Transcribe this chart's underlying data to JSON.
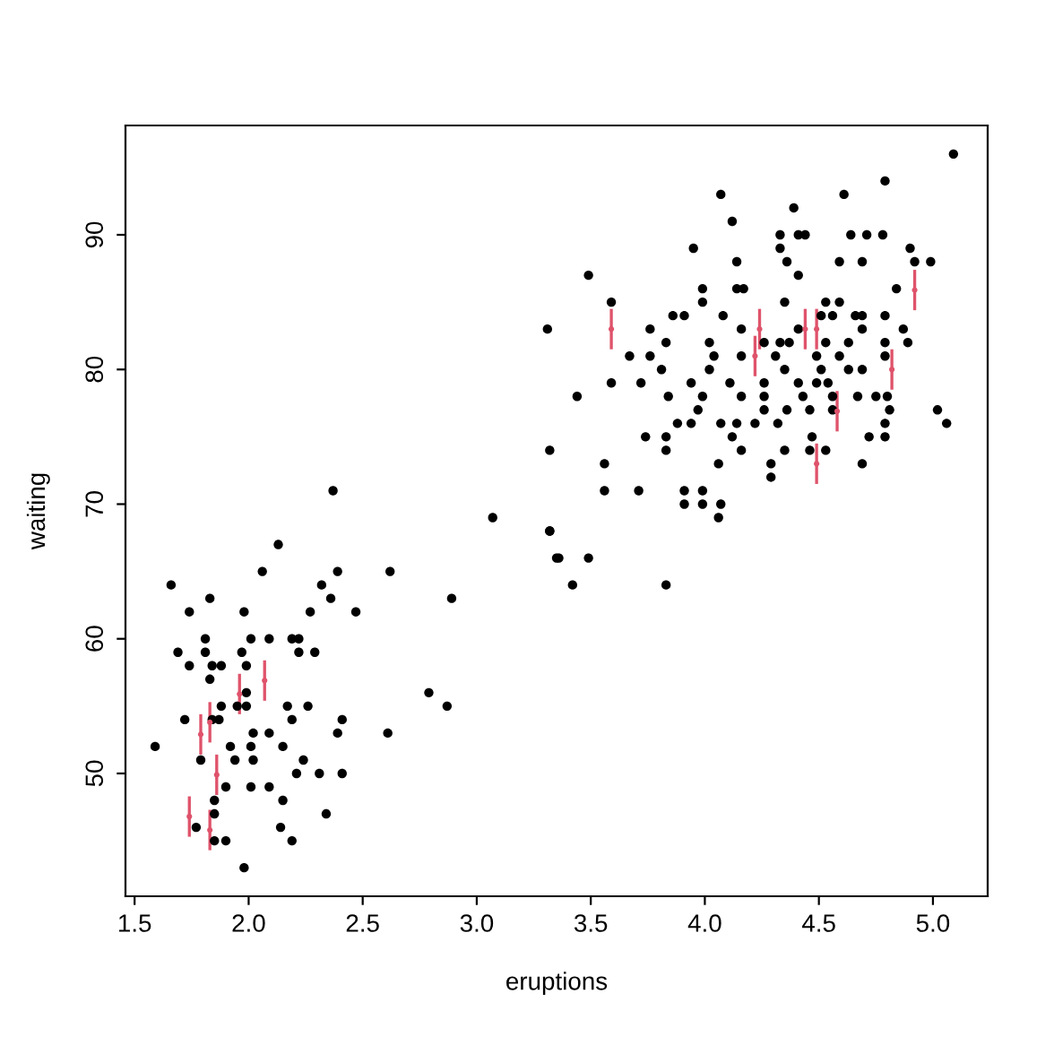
{
  "chart_data": {
    "type": "scatter",
    "xlabel": "eruptions",
    "ylabel": "waiting",
    "xlim": [
      1.46,
      5.24
    ],
    "ylim": [
      40.88,
      98.12
    ],
    "xticks": [
      {
        "value": 1.5,
        "label": "1.5"
      },
      {
        "value": 2.0,
        "label": "2.0"
      },
      {
        "value": 2.5,
        "label": "2.5"
      },
      {
        "value": 3.0,
        "label": "3.0"
      },
      {
        "value": 3.5,
        "label": "3.5"
      },
      {
        "value": 4.0,
        "label": "4.0"
      },
      {
        "value": 4.5,
        "label": "4.5"
      },
      {
        "value": 5.0,
        "label": "5.0"
      }
    ],
    "yticks": [
      50,
      60,
      70,
      80,
      90
    ],
    "grid": false,
    "marker": "circle",
    "series": [
      {
        "color": "#000000",
        "x": [
          2.37,
          3.07,
          3.32,
          3.35,
          2.13,
          2.06,
          2.39,
          2.62,
          1.66,
          2.32,
          1.83,
          2.36,
          2.89,
          1.74,
          1.98,
          2.27,
          2.47,
          1.81,
          2.01,
          2.09,
          2.19,
          2.22,
          1.69,
          1.81,
          1.97,
          2.22,
          2.29,
          1.74,
          1.84,
          1.88,
          1.99,
          1.83,
          1.99,
          2.79,
          2.87,
          1.88,
          1.95,
          1.99,
          2.17,
          2.26,
          1.72,
          1.84,
          1.87,
          2.19,
          2.41,
          2.02,
          2.09,
          2.39,
          2.61,
          1.59,
          1.92,
          2.01,
          2.15,
          1.79,
          1.94,
          2.02,
          2.24,
          2.21,
          2.31,
          2.41,
          1.9,
          2.01,
          2.09,
          1.85,
          2.15,
          1.85,
          2.34,
          1.77,
          2.14,
          1.85,
          1.9,
          2.19,
          1.98,
          5.09,
          4.79,
          4.07,
          4.61,
          4.39,
          4.12,
          4.33,
          4.41,
          4.44,
          4.64,
          4.71,
          4.78,
          3.95,
          4.33,
          4.9,
          4.14,
          4.36,
          4.59,
          4.69,
          4.92,
          4.99,
          3.49,
          4.41,
          3.99,
          4.14,
          4.17,
          4.84,
          3.59,
          3.99,
          4.35,
          4.53,
          4.59,
          3.86,
          3.91,
          4.08,
          4.51,
          4.56,
          4.66,
          4.69,
          4.79,
          3.31,
          3.76,
          4.16,
          4.41,
          4.69,
          4.87,
          3.83,
          4.02,
          4.26,
          4.33,
          4.37,
          4.53,
          4.63,
          4.79,
          4.89,
          3.67,
          3.76,
          4.04,
          4.16,
          4.31,
          4.49,
          4.59,
          4.79,
          3.81,
          4.02,
          4.35,
          4.51,
          4.63,
          4.69,
          3.59,
          3.72,
          3.94,
          4.11,
          4.26,
          4.41,
          4.49,
          4.54,
          3.44,
          3.84,
          3.99,
          4.16,
          4.26,
          4.43,
          4.56,
          4.67,
          4.75,
          4.8,
          3.97,
          4.26,
          4.36,
          4.46,
          4.56,
          4.81,
          5.02,
          3.88,
          3.94,
          4.07,
          4.14,
          4.22,
          4.32,
          4.79,
          5.06,
          3.74,
          3.83,
          4.12,
          4.47,
          4.72,
          4.79,
          3.32,
          3.83,
          4.16,
          4.35,
          4.46,
          4.53,
          3.56,
          4.06,
          4.29,
          4.69,
          4.29,
          3.56,
          3.71,
          3.91,
          3.99,
          3.91,
          3.99,
          4.07,
          4.06,
          3.32,
          3.36,
          3.49,
          3.42,
          3.83
        ],
        "values": [
          71,
          69,
          68,
          66,
          67,
          65,
          65,
          65,
          64,
          64,
          63,
          63,
          63,
          62,
          62,
          62,
          62,
          60,
          60,
          60,
          60,
          60,
          59,
          59,
          59,
          59,
          59,
          58,
          58,
          58,
          58,
          57,
          56,
          56,
          55,
          55,
          55,
          55,
          55,
          55,
          54,
          54,
          54,
          54,
          54,
          53,
          53,
          53,
          53,
          52,
          52,
          52,
          52,
          51,
          51,
          51,
          51,
          50,
          50,
          50,
          49,
          49,
          49,
          48,
          48,
          47,
          47,
          46,
          46,
          45,
          45,
          45,
          43,
          96,
          94,
          93,
          93,
          92,
          91,
          90,
          90,
          90,
          90,
          90,
          90,
          89,
          89,
          89,
          88,
          88,
          88,
          88,
          88,
          88,
          87,
          87,
          86,
          86,
          86,
          86,
          85,
          85,
          85,
          85,
          85,
          84,
          84,
          84,
          84,
          84,
          84,
          84,
          84,
          83,
          83,
          83,
          83,
          83,
          83,
          82,
          82,
          82,
          82,
          82,
          82,
          82,
          82,
          82,
          81,
          81,
          81,
          81,
          81,
          81,
          81,
          81,
          80,
          80,
          80,
          80,
          80,
          80,
          79,
          79,
          79,
          79,
          79,
          79,
          79,
          79,
          78,
          78,
          78,
          78,
          78,
          78,
          78,
          78,
          78,
          78,
          77,
          77,
          77,
          77,
          77,
          77,
          77,
          76,
          76,
          76,
          76,
          76,
          76,
          76,
          76,
          75,
          75,
          75,
          75,
          75,
          75,
          74,
          74,
          74,
          74,
          74,
          74,
          73,
          73,
          73,
          73,
          72,
          71,
          71,
          71,
          71,
          70,
          70,
          70,
          69,
          68,
          66,
          66,
          64,
          64
        ]
      },
      {
        "color": "#df536b",
        "x": [
          1.74,
          1.83,
          1.79,
          1.83,
          1.86,
          1.96,
          2.07,
          3.59,
          4.24,
          4.22,
          4.44,
          4.49,
          4.82,
          4.92,
          4.58,
          4.49
        ],
        "values": [
          46.8,
          45.8,
          52.9,
          53.8,
          49.9,
          55.9,
          56.9,
          83.0,
          83.0,
          81.0,
          83.0,
          83.0,
          80.0,
          85.9,
          76.9,
          73.0
        ],
        "errors": [
          1.5,
          1.5,
          1.5,
          1.5,
          1.5,
          1.5,
          1.5,
          1.5,
          1.5,
          1.5,
          1.5,
          1.5,
          1.5,
          1.5,
          1.5,
          1.5
        ]
      }
    ]
  }
}
